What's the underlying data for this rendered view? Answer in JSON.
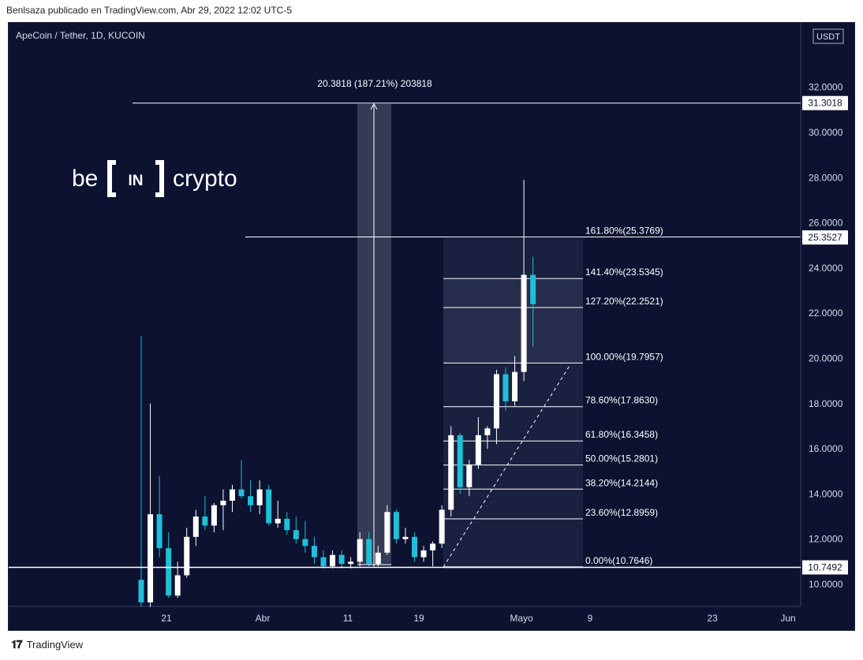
{
  "header": {
    "published": "Benlsaza publicado en TradingView.com, Abr 29, 2022 12:02 UTC-5"
  },
  "footer": {
    "brand": "TradingView"
  },
  "watermark": {
    "left": "be",
    "middle": "IN",
    "right": "crypto"
  },
  "chart_data": {
    "type": "candlestick",
    "title": "ApeCoin / Tether, 1D, KUCOIN",
    "currency": "USDT",
    "ylim": [
      9.0,
      34.0
    ],
    "y_ticks": [
      "10.0000",
      "12.0000",
      "14.0000",
      "16.0000",
      "18.0000",
      "20.0000",
      "22.0000",
      "24.0000",
      "26.0000",
      "28.0000",
      "30.0000",
      "32.0000"
    ],
    "x_ticks": [
      "21",
      "Abr",
      "11",
      "19",
      "Mayo",
      "9",
      "23",
      "Jun"
    ],
    "price_labels": [
      "31.3018",
      "25.3527",
      "10.7492"
    ],
    "measure_label": "20.3818 (187.21%) 203818",
    "fib_levels": [
      {
        "label": "161.80%(25.3769)",
        "value": 25.3769
      },
      {
        "label": "141.40%(23.5345)",
        "value": 23.5345
      },
      {
        "label": "127.20%(22.2521)",
        "value": 22.2521
      },
      {
        "label": "100.00%(19.7957)",
        "value": 19.7957
      },
      {
        "label": "78.60%(17.8630)",
        "value": 17.863
      },
      {
        "label": "61.80%(16.3458)",
        "value": 16.3458
      },
      {
        "label": "50.00%(15.2801)",
        "value": 15.2801
      },
      {
        "label": "38.20%(14.2144)",
        "value": 14.2144
      },
      {
        "label": "23.60%(12.8959)",
        "value": 12.8959
      },
      {
        "label": "0.00%(10.7646)",
        "value": 10.7646
      }
    ],
    "candles": [
      {
        "o": 10.2,
        "h": 21.0,
        "l": 9.0,
        "c": 9.2
      },
      {
        "o": 9.2,
        "h": 18.0,
        "l": 9.0,
        "c": 13.1
      },
      {
        "o": 13.1,
        "h": 14.8,
        "l": 11.2,
        "c": 11.6
      },
      {
        "o": 11.6,
        "h": 12.3,
        "l": 9.4,
        "c": 9.5
      },
      {
        "o": 9.5,
        "h": 11.0,
        "l": 9.4,
        "c": 10.4
      },
      {
        "o": 10.4,
        "h": 12.5,
        "l": 10.3,
        "c": 12.1
      },
      {
        "o": 12.1,
        "h": 13.3,
        "l": 11.7,
        "c": 13.0
      },
      {
        "o": 13.0,
        "h": 13.9,
        "l": 12.4,
        "c": 12.6
      },
      {
        "o": 12.6,
        "h": 13.6,
        "l": 12.3,
        "c": 13.5
      },
      {
        "o": 13.5,
        "h": 14.2,
        "l": 12.4,
        "c": 13.7
      },
      {
        "o": 13.7,
        "h": 14.4,
        "l": 13.2,
        "c": 14.2
      },
      {
        "o": 14.2,
        "h": 15.5,
        "l": 13.8,
        "c": 13.9
      },
      {
        "o": 13.9,
        "h": 14.6,
        "l": 13.2,
        "c": 13.5
      },
      {
        "o": 13.5,
        "h": 14.6,
        "l": 13.1,
        "c": 14.2
      },
      {
        "o": 14.2,
        "h": 14.4,
        "l": 12.6,
        "c": 12.7
      },
      {
        "o": 12.7,
        "h": 13.7,
        "l": 12.5,
        "c": 12.9
      },
      {
        "o": 12.9,
        "h": 13.2,
        "l": 12.2,
        "c": 12.4
      },
      {
        "o": 12.4,
        "h": 13.0,
        "l": 11.8,
        "c": 12.0
      },
      {
        "o": 12.0,
        "h": 12.8,
        "l": 11.4,
        "c": 11.7
      },
      {
        "o": 11.7,
        "h": 12.1,
        "l": 10.9,
        "c": 11.2
      },
      {
        "o": 11.2,
        "h": 11.5,
        "l": 10.7,
        "c": 10.8
      },
      {
        "o": 10.8,
        "h": 11.5,
        "l": 10.7,
        "c": 11.3
      },
      {
        "o": 11.3,
        "h": 11.5,
        "l": 10.7,
        "c": 10.9
      },
      {
        "o": 10.9,
        "h": 11.2,
        "l": 10.7,
        "c": 11.0
      },
      {
        "o": 11.0,
        "h": 12.3,
        "l": 10.8,
        "c": 12.0
      },
      {
        "o": 12.0,
        "h": 12.3,
        "l": 10.8,
        "c": 10.9
      },
      {
        "o": 10.9,
        "h": 11.7,
        "l": 10.8,
        "c": 11.4
      },
      {
        "o": 11.4,
        "h": 13.5,
        "l": 11.3,
        "c": 13.2
      },
      {
        "o": 13.2,
        "h": 13.3,
        "l": 11.8,
        "c": 12.0
      },
      {
        "o": 12.0,
        "h": 12.5,
        "l": 11.8,
        "c": 12.1
      },
      {
        "o": 12.1,
        "h": 12.3,
        "l": 11.0,
        "c": 11.2
      },
      {
        "o": 11.2,
        "h": 11.7,
        "l": 11.0,
        "c": 11.5
      },
      {
        "o": 11.5,
        "h": 11.9,
        "l": 10.8,
        "c": 11.8
      },
      {
        "o": 11.8,
        "h": 13.5,
        "l": 11.6,
        "c": 13.3
      },
      {
        "o": 13.3,
        "h": 17.0,
        "l": 13.0,
        "c": 16.6
      },
      {
        "o": 16.6,
        "h": 16.7,
        "l": 14.0,
        "c": 14.3
      },
      {
        "o": 14.3,
        "h": 15.5,
        "l": 13.9,
        "c": 15.3
      },
      {
        "o": 15.3,
        "h": 17.4,
        "l": 15.1,
        "c": 16.6
      },
      {
        "o": 16.6,
        "h": 17.0,
        "l": 16.0,
        "c": 16.9
      },
      {
        "o": 16.9,
        "h": 19.5,
        "l": 16.2,
        "c": 19.3
      },
      {
        "o": 19.3,
        "h": 19.6,
        "l": 17.7,
        "c": 18.1
      },
      {
        "o": 18.1,
        "h": 20.1,
        "l": 17.9,
        "c": 19.4
      },
      {
        "o": 19.4,
        "h": 27.9,
        "l": 19.0,
        "c": 23.7
      },
      {
        "o": 23.7,
        "h": 24.5,
        "l": 20.5,
        "c": 22.4
      }
    ]
  }
}
